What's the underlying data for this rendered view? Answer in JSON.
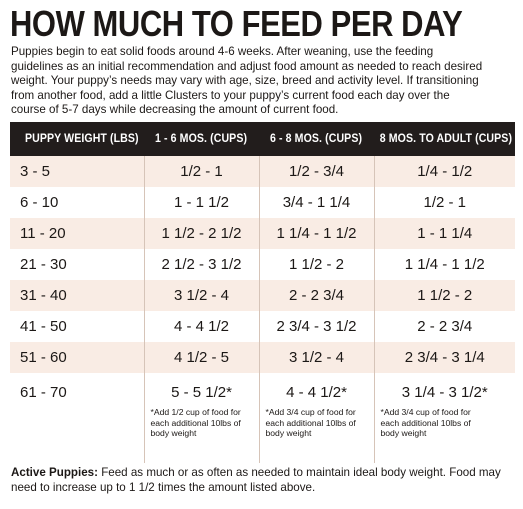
{
  "title": "HOW MUCH TO FEED PER DAY",
  "intro_lines": [
    "Puppies begin to eat solid foods around 4-6 weeks. After weaning, use the feeding",
    "guidelines as an initial recommendation and adjust food amount as needed to reach desired",
    "weight. Your puppy’s needs may vary with age, size, breed and activity level. If transitioning",
    "from another food, add a little Clusters to your puppy’s current food each day over the",
    "course of 5-7 days while decreasing the amount of current food."
  ],
  "table": {
    "headers": [
      "PUPPY WEIGHT (LBS)",
      "1 - 6 MOS. (CUPS)",
      "6 - 8 MOS. (CUPS)",
      "8 MOS. TO ADULT (CUPS)"
    ],
    "rows": [
      [
        "3 - 5",
        "1/2 - 1",
        "1/2 - 3/4",
        "1/4 - 1/2"
      ],
      [
        "6 - 10",
        "1 - 1 1/2",
        "3/4 - 1 1/4",
        "1/2 - 1"
      ],
      [
        "11 - 20",
        "1 1/2 - 2 1/2",
        "1 1/4 - 1 1/2",
        "1 - 1 1/4"
      ],
      [
        "21 - 30",
        "2 1/2 - 3 1/2",
        "1 1/2 - 2",
        "1 1/4 - 1 1/2"
      ],
      [
        "31 - 40",
        "3 1/2 - 4",
        "2 - 2 3/4",
        "1 1/2 - 2"
      ],
      [
        "41 - 50",
        "4 - 4 1/2",
        "2 3/4 - 3 1/2",
        "2 - 2 3/4"
      ],
      [
        "51 - 60",
        "4 1/2 - 5",
        "3 1/2 - 4",
        "2 3/4 - 3 1/4"
      ],
      [
        "61 - 70",
        "5 - 5 1/2*",
        "4 - 4 1/2*",
        "3 1/4 - 3 1/2*"
      ]
    ],
    "notes": [
      "*Add 1/2 cup of food for each additional 10lbs of body weight",
      "*Add 3/4 cup of food for each additional 10lbs of body weight",
      "*Add 3/4 cup of food for each additional 10lbs of body weight"
    ]
  },
  "footer": {
    "label": "Active Puppies:",
    "line1": " Feed as much or as often as needed to maintain ideal body weight. Food may",
    "line2": "need to increase up to 1 1/2 times the amount listed above."
  },
  "colors": {
    "header_bg": "#221d1c",
    "shaded_row": "#f9ece4",
    "divider": "#d6c4b8"
  }
}
